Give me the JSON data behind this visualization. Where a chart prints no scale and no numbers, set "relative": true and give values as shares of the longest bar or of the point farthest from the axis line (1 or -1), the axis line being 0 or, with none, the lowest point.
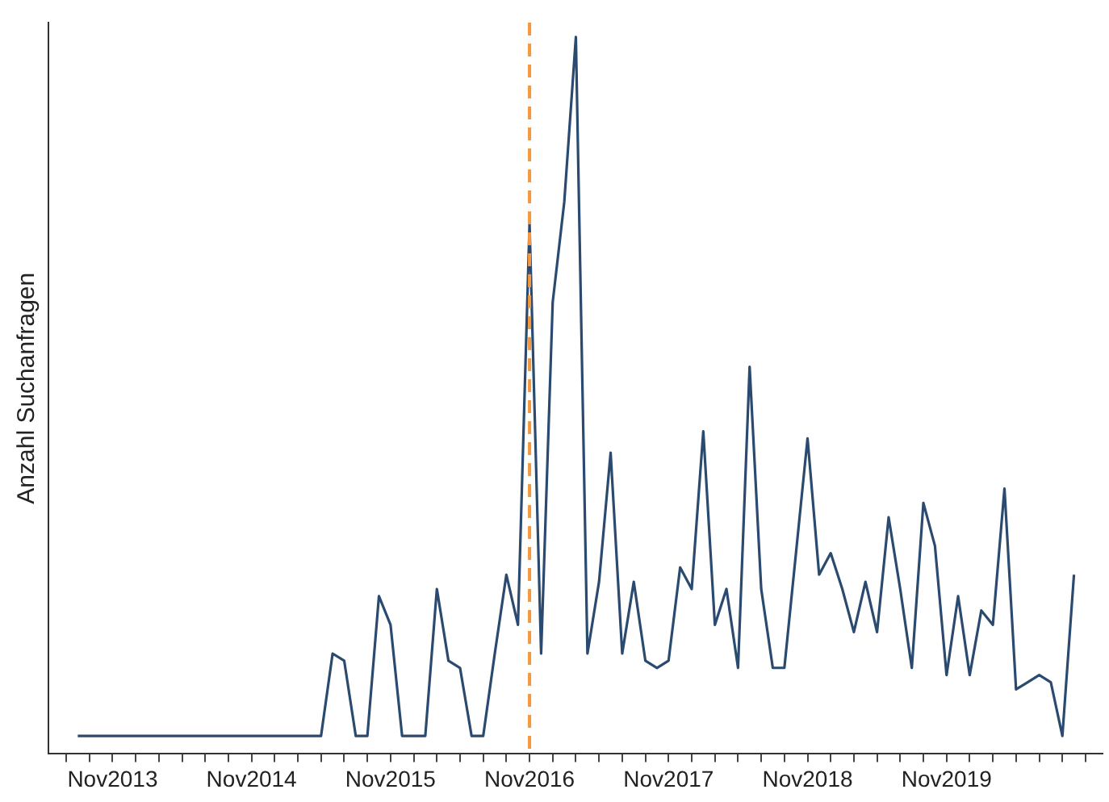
{
  "chart_data": {
    "type": "line",
    "ylabel": "Anzahl Suchanfragen",
    "relative": true,
    "tick_labels": "x",
    "grid": false,
    "legend": false,
    "marker": "none",
    "line_style": "solid",
    "xlim": [
      "2013-05-15",
      "2020-12-15"
    ],
    "xticks": [
      {
        "value": "2013-07",
        "label": null
      },
      {
        "value": "2013-09",
        "label": null
      },
      {
        "value": "2013-11",
        "label": "Nov2013"
      },
      {
        "value": "2014-01",
        "label": null
      },
      {
        "value": "2014-03",
        "label": null
      },
      {
        "value": "2014-05",
        "label": null
      },
      {
        "value": "2014-07",
        "label": null
      },
      {
        "value": "2014-09",
        "label": null
      },
      {
        "value": "2014-11",
        "label": "Nov2014"
      },
      {
        "value": "2015-01",
        "label": null
      },
      {
        "value": "2015-03",
        "label": null
      },
      {
        "value": "2015-05",
        "label": null
      },
      {
        "value": "2015-07",
        "label": null
      },
      {
        "value": "2015-09",
        "label": null
      },
      {
        "value": "2015-11",
        "label": "Nov2015"
      },
      {
        "value": "2016-01",
        "label": null
      },
      {
        "value": "2016-03",
        "label": null
      },
      {
        "value": "2016-05",
        "label": null
      },
      {
        "value": "2016-07",
        "label": null
      },
      {
        "value": "2016-09",
        "label": null
      },
      {
        "value": "2016-11",
        "label": "Nov2016"
      },
      {
        "value": "2017-01",
        "label": null
      },
      {
        "value": "2017-03",
        "label": null
      },
      {
        "value": "2017-05",
        "label": null
      },
      {
        "value": "2017-07",
        "label": null
      },
      {
        "value": "2017-09",
        "label": null
      },
      {
        "value": "2017-11",
        "label": "Nov2017"
      },
      {
        "value": "2018-01",
        "label": null
      },
      {
        "value": "2018-03",
        "label": null
      },
      {
        "value": "2018-05",
        "label": null
      },
      {
        "value": "2018-07",
        "label": null
      },
      {
        "value": "2018-09",
        "label": null
      },
      {
        "value": "2018-11",
        "label": "Nov2018"
      },
      {
        "value": "2019-01",
        "label": null
      },
      {
        "value": "2019-03",
        "label": null
      },
      {
        "value": "2019-05",
        "label": null
      },
      {
        "value": "2019-07",
        "label": null
      },
      {
        "value": "2019-09",
        "label": null
      },
      {
        "value": "2019-11",
        "label": "Nov2019"
      },
      {
        "value": "2020-01",
        "label": null
      },
      {
        "value": "2020-03",
        "label": null
      },
      {
        "value": "2020-05",
        "label": null
      },
      {
        "value": "2020-07",
        "label": null
      },
      {
        "value": "2020-09",
        "label": null
      },
      {
        "value": "2020-11",
        "label": null
      }
    ],
    "x": [
      "2013-08",
      "2013-09",
      "2013-10",
      "2013-11",
      "2013-12",
      "2014-01",
      "2014-02",
      "2014-03",
      "2014-04",
      "2014-05",
      "2014-06",
      "2014-07",
      "2014-08",
      "2014-09",
      "2014-10",
      "2014-11",
      "2014-12",
      "2015-01",
      "2015-02",
      "2015-03",
      "2015-04",
      "2015-05",
      "2015-06",
      "2015-07",
      "2015-08",
      "2015-09",
      "2015-10",
      "2015-11",
      "2015-12",
      "2016-01",
      "2016-02",
      "2016-03",
      "2016-04",
      "2016-05",
      "2016-06",
      "2016-07",
      "2016-08",
      "2016-09",
      "2016-10",
      "2016-11",
      "2016-12",
      "2017-01",
      "2017-02",
      "2017-03",
      "2017-04",
      "2017-05",
      "2017-06",
      "2017-07",
      "2017-08",
      "2017-09",
      "2017-10",
      "2017-11",
      "2017-12",
      "2018-01",
      "2018-02",
      "2018-03",
      "2018-04",
      "2018-05",
      "2018-06",
      "2018-07",
      "2018-08",
      "2018-09",
      "2018-10",
      "2018-11",
      "2018-12",
      "2019-01",
      "2019-02",
      "2019-03",
      "2019-04",
      "2019-05",
      "2019-06",
      "2019-07",
      "2019-08",
      "2019-09",
      "2019-10",
      "2019-11",
      "2019-12",
      "2020-01",
      "2020-02",
      "2020-03",
      "2020-04",
      "2020-05",
      "2020-06",
      "2020-07",
      "2020-08",
      "2020-09",
      "2020-10"
    ],
    "series": [
      {
        "color": "#2b4a6f",
        "values": [
          0.025,
          0.025,
          0.025,
          0.025,
          0.025,
          0.025,
          0.025,
          0.025,
          0.025,
          0.025,
          0.025,
          0.025,
          0.025,
          0.025,
          0.025,
          0.025,
          0.025,
          0.025,
          0.025,
          0.025,
          0.025,
          0.025,
          0.14,
          0.13,
          0.025,
          0.025,
          0.22,
          0.18,
          0.025,
          0.025,
          0.025,
          0.23,
          0.13,
          0.12,
          0.025,
          0.025,
          0.14,
          0.25,
          0.18,
          0.74,
          0.14,
          0.63,
          0.77,
          1,
          0.14,
          0.24,
          0.42,
          0.14,
          0.24,
          0.13,
          0.12,
          0.13,
          0.26,
          0.23,
          0.45,
          0.18,
          0.23,
          0.12,
          0.54,
          0.23,
          0.12,
          0.12,
          0.28,
          0.44,
          0.25,
          0.28,
          0.23,
          0.17,
          0.24,
          0.17,
          0.33,
          0.23,
          0.12,
          0.35,
          0.29,
          0.11,
          0.22,
          0.11,
          0.2,
          0.18,
          0.37,
          0.09,
          0.1,
          0.11,
          0.1,
          0.025,
          0.25
        ]
      }
    ],
    "ref_lines": [
      {
        "axis": "x",
        "value": "2016-11",
        "color": "#f5973a",
        "line_style": "dashed"
      }
    ]
  }
}
